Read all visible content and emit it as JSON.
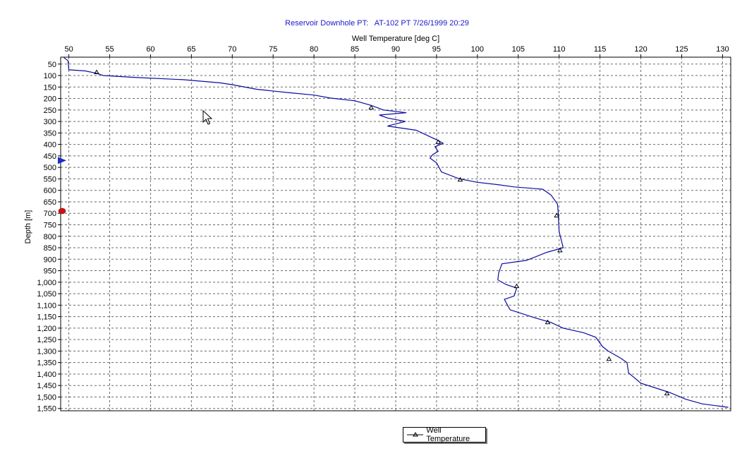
{
  "chart_data": {
    "type": "line",
    "title": "Reservoir Downhole PT:   AT-102 PT 7/26/1999 20:29",
    "xlabel": "Well Temperature [deg C]",
    "ylabel": "Depth [m]",
    "xlim": [
      49,
      131
    ],
    "ylim": [
      1560,
      20
    ],
    "x_ticks": [
      50,
      55,
      60,
      65,
      70,
      75,
      80,
      85,
      90,
      95,
      100,
      105,
      110,
      115,
      120,
      125,
      130
    ],
    "y_ticks": [
      50,
      100,
      150,
      200,
      250,
      300,
      350,
      400,
      450,
      500,
      550,
      600,
      650,
      700,
      750,
      800,
      850,
      900,
      950,
      1000,
      1050,
      1100,
      1150,
      1200,
      1250,
      1300,
      1350,
      1400,
      1450,
      1500,
      1550
    ],
    "y_tick_labels": [
      "50",
      "100",
      "150",
      "200",
      "250",
      "300",
      "350",
      "400",
      "450",
      "500",
      "550",
      "600",
      "650",
      "700",
      "750",
      "800",
      "850",
      "900",
      "950",
      "1,000",
      "1,050",
      "1,100",
      "1,150",
      "1,200",
      "1,250",
      "1,300",
      "1,350",
      "1,400",
      "1,450",
      "1,500",
      "1,550"
    ],
    "grid": true,
    "legend_position": "bottom-center",
    "series": [
      {
        "name": "Well Temperature",
        "color": "#0b0ba0",
        "points": [
          [
            49.4,
            22
          ],
          [
            49.9,
            35
          ],
          [
            50.0,
            75
          ],
          [
            52.0,
            80
          ],
          [
            53.4,
            90
          ],
          [
            54.2,
            100
          ],
          [
            58.0,
            108
          ],
          [
            64.0,
            118
          ],
          [
            68.5,
            132
          ],
          [
            70.0,
            140
          ],
          [
            73.0,
            160
          ],
          [
            77.0,
            175
          ],
          [
            80.0,
            185
          ],
          [
            82.0,
            198
          ],
          [
            85.0,
            210
          ],
          [
            87.0,
            230
          ],
          [
            88.5,
            250
          ],
          [
            91.3,
            262
          ],
          [
            88.0,
            272
          ],
          [
            89.0,
            285
          ],
          [
            91.2,
            300
          ],
          [
            89.0,
            320
          ],
          [
            92.5,
            338
          ],
          [
            95.3,
            385
          ],
          [
            95.8,
            395
          ],
          [
            94.8,
            410
          ],
          [
            95.2,
            430
          ],
          [
            94.5,
            445
          ],
          [
            94.2,
            460
          ],
          [
            95.0,
            480
          ],
          [
            95.6,
            520
          ],
          [
            97.8,
            550
          ],
          [
            100.0,
            565
          ],
          [
            102.5,
            575
          ],
          [
            104.5,
            585
          ],
          [
            108.0,
            595
          ],
          [
            109.0,
            620
          ],
          [
            109.8,
            660
          ],
          [
            109.9,
            700
          ],
          [
            110.0,
            780
          ],
          [
            110.5,
            850
          ],
          [
            108.5,
            870
          ],
          [
            106.0,
            905
          ],
          [
            103.0,
            920
          ],
          [
            102.6,
            960
          ],
          [
            102.5,
            990
          ],
          [
            103.5,
            1010
          ],
          [
            104.8,
            1025
          ],
          [
            104.5,
            1060
          ],
          [
            103.3,
            1075
          ],
          [
            104.0,
            1120
          ],
          [
            107.0,
            1155
          ],
          [
            109.0,
            1175
          ],
          [
            110.5,
            1200
          ],
          [
            113.0,
            1220
          ],
          [
            114.5,
            1240
          ],
          [
            115.3,
            1280
          ],
          [
            116.0,
            1300
          ],
          [
            117.5,
            1330
          ],
          [
            118.3,
            1350
          ],
          [
            118.5,
            1395
          ],
          [
            120.0,
            1440
          ],
          [
            123.5,
            1480
          ],
          [
            125.5,
            1510
          ],
          [
            127.5,
            1530
          ],
          [
            130.7,
            1545
          ]
        ],
        "markers": [
          [
            53.4,
            86
          ],
          [
            87.0,
            240
          ],
          [
            95.2,
            390
          ],
          [
            97.9,
            554
          ],
          [
            109.7,
            710
          ],
          [
            110.1,
            862
          ],
          [
            104.8,
            1018
          ],
          [
            108.6,
            1175
          ],
          [
            116.1,
            1335
          ],
          [
            123.2,
            1485
          ]
        ]
      }
    ],
    "indicators": [
      {
        "name": "depth-marker-blue",
        "depth": 470,
        "color": "#1a2fc8"
      },
      {
        "name": "depth-marker-red",
        "depth": 690,
        "color": "#d01010"
      }
    ]
  },
  "legend": {
    "label": "Well Temperature"
  }
}
